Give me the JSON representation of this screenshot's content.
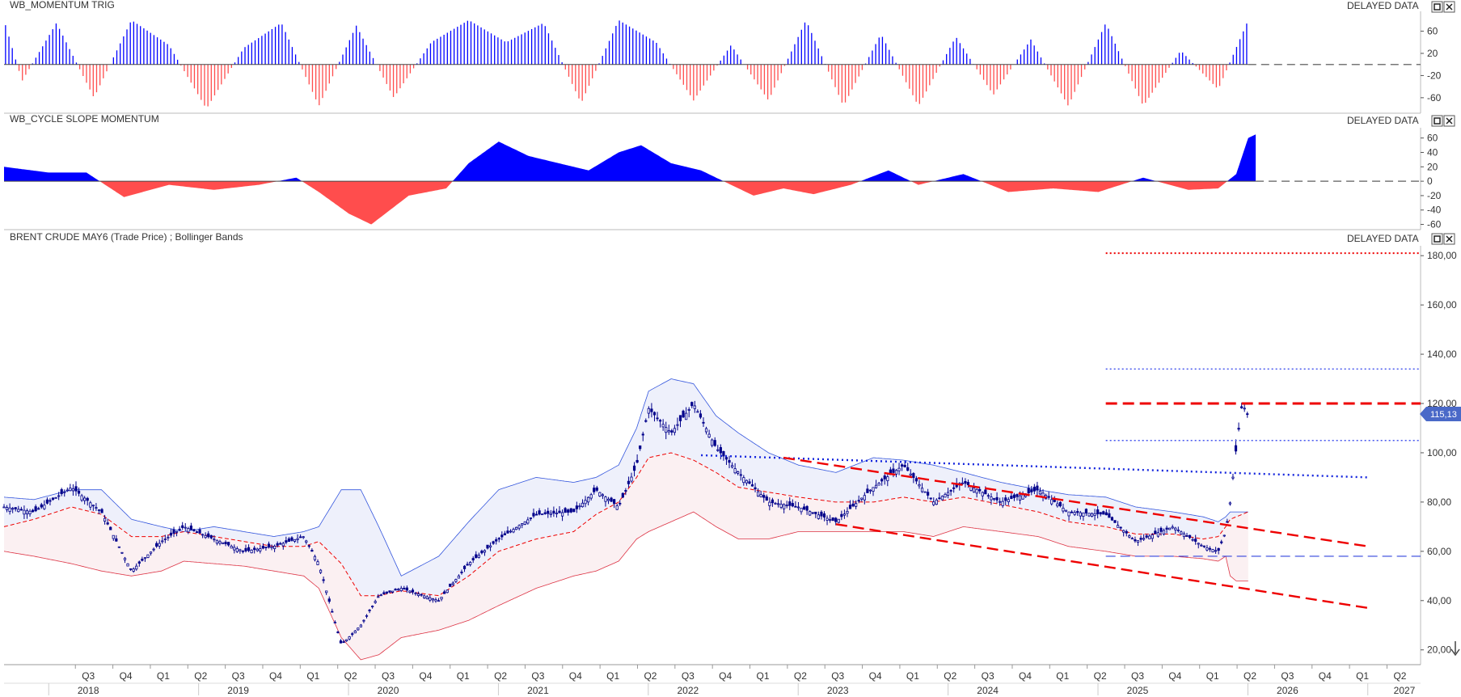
{
  "panels": [
    {
      "title": "WB_MOMENTUM TRIG",
      "status": "DELAYED DATA"
    },
    {
      "title": "WB_CYCLE SLOPE MOMENTUM",
      "status": "DELAYED DATA"
    },
    {
      "title": "BRENT CRUDE MAY6 (Trade Price) ;  Bollinger Bands",
      "status": "DELAYED DATA"
    }
  ],
  "colors": {
    "up": "#0000ff",
    "down": "#ff4d4d",
    "candle": "#00008b",
    "band_upper_fill": "#eef0fb",
    "band_lower_fill": "#fbf0f2"
  },
  "chart_data": [
    {
      "type": "bar",
      "title": "WB_MOMENTUM TRIG",
      "ylim": [
        -85,
        90
      ],
      "yticks": [
        "60",
        "20",
        "-20",
        "-60"
      ],
      "ytick_values": [
        60,
        20,
        -20,
        -60
      ],
      "x": [
        2017.9,
        2018.02,
        2018.25,
        2018.5,
        2018.75,
        2019.0,
        2019.25,
        2019.5,
        2019.75,
        2020.0,
        2020.25,
        2020.5,
        2020.75,
        2021.0,
        2021.25,
        2021.5,
        2021.75,
        2022.0,
        2022.25,
        2022.5,
        2022.75,
        2023.0,
        2023.25,
        2023.5,
        2023.75,
        2024.0,
        2024.25,
        2024.5,
        2024.75,
        2025.0,
        2025.25,
        2025.5,
        2025.75,
        2026.0,
        2026.2
      ],
      "values": [
        80,
        -30,
        75,
        -60,
        80,
        35,
        -80,
        30,
        75,
        -75,
        70,
        -60,
        40,
        80,
        40,
        75,
        -70,
        80,
        40,
        -65,
        35,
        -65,
        80,
        -75,
        55,
        -75,
        50,
        -55,
        45,
        -75,
        75,
        -75,
        25,
        -45,
        80
      ]
    },
    {
      "type": "area",
      "title": "WB_CYCLE SLOPE MOMENTUM",
      "ylim": [
        -65,
        72
      ],
      "yticks": [
        "60",
        "40",
        "20",
        "0",
        "-20",
        "-40",
        "-60"
      ],
      "ytick_values": [
        60,
        40,
        20,
        0,
        -20,
        -40,
        -60
      ],
      "x": [
        2017.9,
        2018.2,
        2018.45,
        2018.7,
        2019.0,
        2019.3,
        2019.6,
        2019.85,
        2020.0,
        2020.2,
        2020.35,
        2020.6,
        2020.85,
        2021.0,
        2021.2,
        2021.4,
        2021.6,
        2021.8,
        2022.0,
        2022.15,
        2022.35,
        2022.55,
        2022.7,
        2022.9,
        2023.1,
        2023.3,
        2023.55,
        2023.8,
        2024.0,
        2024.3,
        2024.6,
        2024.9,
        2025.2,
        2025.5,
        2025.8,
        2026.0,
        2026.12,
        2026.2,
        2026.25
      ],
      "values": [
        20,
        12,
        12,
        -22,
        -5,
        -12,
        -5,
        5,
        -15,
        -45,
        -60,
        -20,
        -10,
        25,
        55,
        35,
        25,
        15,
        40,
        50,
        25,
        15,
        0,
        -20,
        -10,
        -18,
        -5,
        15,
        -5,
        10,
        -15,
        -10,
        -15,
        5,
        -12,
        -10,
        10,
        60,
        65
      ]
    },
    {
      "type": "candlestick",
      "title": "BRENT CRUDE MAY6 (Trade Price) ;  Bollinger Bands",
      "ylim": [
        14,
        184
      ],
      "yticks": [
        "180,00",
        "160,00",
        "140,00",
        "120,00",
        "100,00",
        "80,00",
        "60,00",
        "40,00",
        "20,00"
      ],
      "ytick_values": [
        180,
        160,
        140,
        120,
        100,
        80,
        60,
        40,
        20
      ],
      "last_price": "115,13",
      "x": [
        2017.9,
        2018.1,
        2018.35,
        2018.55,
        2018.75,
        2018.95,
        2019.1,
        2019.3,
        2019.5,
        2019.7,
        2019.9,
        2020.0,
        2020.15,
        2020.28,
        2020.4,
        2020.55,
        2020.8,
        2021.0,
        2021.2,
        2021.45,
        2021.7,
        2021.85,
        2022.0,
        2022.12,
        2022.2,
        2022.35,
        2022.5,
        2022.65,
        2022.8,
        2023.0,
        2023.2,
        2023.45,
        2023.7,
        2023.9,
        2024.1,
        2024.3,
        2024.55,
        2024.8,
        2025.0,
        2025.25,
        2025.45,
        2025.7,
        2025.9,
        2026.0,
        2026.05,
        2026.08,
        2026.12,
        2026.16,
        2026.2
      ],
      "close": [
        78,
        76,
        86,
        76,
        52,
        64,
        70,
        65,
        60,
        62,
        66,
        55,
        22,
        30,
        42,
        45,
        40,
        55,
        65,
        75,
        76,
        85,
        78,
        95,
        118,
        108,
        120,
        102,
        92,
        80,
        78,
        72,
        86,
        95,
        80,
        88,
        80,
        85,
        76,
        75,
        64,
        70,
        62,
        60,
        68,
        80,
        102,
        120,
        115
      ],
      "upper_band": [
        82,
        81,
        85,
        85,
        73,
        70,
        68,
        70,
        68,
        66,
        68,
        70,
        85,
        85,
        70,
        50,
        58,
        72,
        85,
        90,
        88,
        90,
        95,
        110,
        125,
        130,
        128,
        115,
        108,
        100,
        95,
        92,
        98,
        97,
        95,
        92,
        88,
        85,
        83,
        82,
        78,
        76,
        74,
        72,
        74,
        76,
        76,
        76,
        76
      ],
      "mid_band": [
        70,
        73,
        78,
        75,
        66,
        66,
        68,
        66,
        64,
        62,
        62,
        64,
        55,
        42,
        42,
        44,
        42,
        50,
        60,
        65,
        68,
        75,
        80,
        90,
        98,
        100,
        97,
        92,
        86,
        84,
        82,
        80,
        80,
        82,
        80,
        82,
        79,
        76,
        72,
        70,
        67,
        67,
        65,
        66,
        70,
        73,
        74,
        75,
        76
      ],
      "lower_band": [
        60,
        58,
        55,
        52,
        50,
        52,
        56,
        55,
        54,
        52,
        50,
        45,
        25,
        16,
        18,
        25,
        28,
        32,
        38,
        45,
        50,
        52,
        56,
        65,
        68,
        72,
        76,
        70,
        65,
        65,
        68,
        68,
        68,
        68,
        66,
        70,
        68,
        66,
        62,
        60,
        58,
        58,
        57,
        56,
        58,
        50,
        48,
        48,
        48
      ],
      "annotations": {
        "red_dotted_level": 181,
        "blue_dotted_levels": [
          134,
          105
        ],
        "red_dashed_level": 120,
        "blue_dashed_level": 58,
        "blue_dotted_trend": [
          [
            2022.55,
            99
          ],
          [
            2027.0,
            90
          ]
        ],
        "red_dashed_channel_top": [
          [
            2023.1,
            98
          ],
          [
            2027.0,
            62
          ]
        ],
        "red_dashed_channel_bottom": [
          [
            2023.45,
            71
          ],
          [
            2027.0,
            37
          ]
        ]
      }
    }
  ],
  "x_axis": {
    "quarters": [
      "Q3",
      "Q4",
      "Q1",
      "Q2",
      "Q3",
      "Q4",
      "Q1",
      "Q2",
      "Q3",
      "Q4",
      "Q1",
      "Q2",
      "Q3",
      "Q4",
      "Q1",
      "Q2",
      "Q3",
      "Q4",
      "Q1",
      "Q2",
      "Q3",
      "Q4",
      "Q1",
      "Q2",
      "Q3",
      "Q4",
      "Q1",
      "Q2",
      "Q3",
      "Q4",
      "Q1",
      "Q2",
      "Q3",
      "Q4",
      "Q1",
      "Q2"
    ],
    "quarter_x": [
      2018.5,
      2018.75,
      2019.0,
      2019.25,
      2019.5,
      2019.75,
      2020.0,
      2020.25,
      2020.5,
      2020.75,
      2021.0,
      2021.25,
      2021.5,
      2021.75,
      2022.0,
      2022.25,
      2022.5,
      2022.75,
      2023.0,
      2023.25,
      2023.5,
      2023.75,
      2024.0,
      2024.25,
      2024.5,
      2024.75,
      2025.0,
      2025.25,
      2025.5,
      2025.75,
      2026.0,
      2026.25,
      2026.5,
      2026.75,
      2027.0,
      2027.25
    ],
    "years": [
      "2018",
      "2019",
      "2020",
      "2021",
      "2022",
      "2023",
      "2024",
      "2025",
      "2026",
      "2027"
    ],
    "year_x": [
      2018.5,
      2019.5,
      2020.5,
      2021.5,
      2022.5,
      2023.5,
      2024.5,
      2025.5,
      2026.5,
      2027.3
    ]
  }
}
